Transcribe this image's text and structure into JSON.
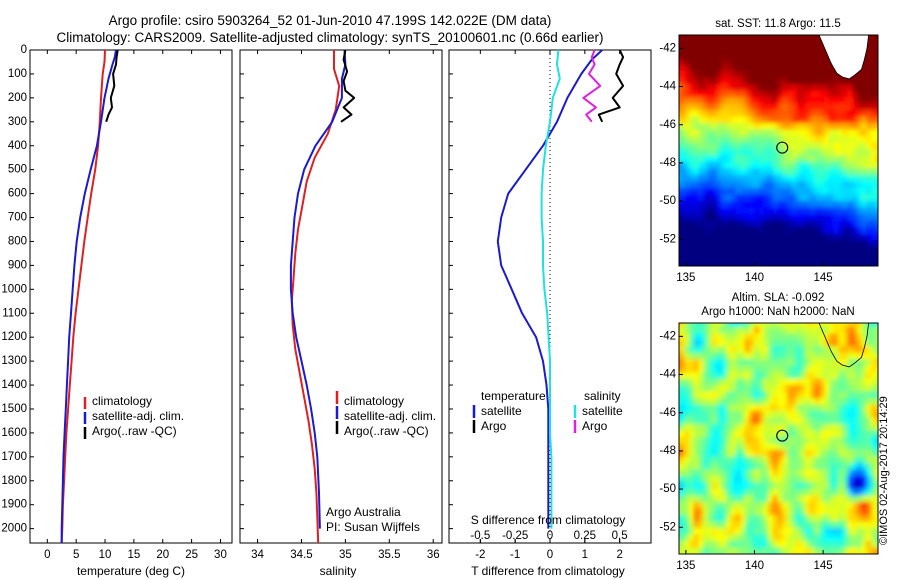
{
  "title_line1": "Argo profile: csiro 5903264_52 01-Jun-2010 47.199S 142.022E (DM data)",
  "title_line2": "Climatology: CARS2009. Satellite-adjusted climatology: synTS_20100601.nc (0.66d earlier)",
  "watermark": "©IMOS 02-Aug-2017 20:14:29",
  "colors": {
    "climatology": "#e02020",
    "satellite": "#1a1ad0",
    "argo": "#000000",
    "satellite_salinity": "#20e0e0",
    "argo_salinity": "#e020e0"
  },
  "chart_data": [
    {
      "type": "line",
      "id": "temperature",
      "xlabel": "temperature (deg C)",
      "ylabel": "",
      "xlim": [
        -3,
        32
      ],
      "ylim": [
        2060,
        0
      ],
      "xticks": [
        0,
        5,
        10,
        15,
        20,
        25,
        30
      ],
      "xtick_labels": [
        "0",
        "5",
        "10",
        "15",
        "20",
        "25",
        "30"
      ],
      "yticks": [
        0,
        100,
        200,
        300,
        400,
        500,
        600,
        700,
        800,
        900,
        1000,
        1100,
        1200,
        1300,
        1400,
        1500,
        1600,
        1700,
        1800,
        1900,
        2000
      ],
      "ytick_labels": [
        "0",
        "100",
        "200",
        "300",
        "400",
        "500",
        "600",
        "700",
        "800",
        "900",
        "1000",
        "1100",
        "1200",
        "1300",
        "1400",
        "1500",
        "1600",
        "1700",
        "1800",
        "1900",
        "2000"
      ],
      "legend": [
        "climatology",
        "satellite-adj. clim.",
        "Argo(..raw -QC)"
      ],
      "series": [
        {
          "name": "climatology",
          "color_key": "climatology",
          "x": [
            10.0,
            9.9,
            9.6,
            9.3,
            9.1,
            8.8,
            8.3,
            7.6,
            7.0,
            6.4,
            5.9,
            5.4,
            4.9,
            4.5,
            4.2,
            3.9,
            3.6,
            3.3,
            3.1,
            2.9,
            2.7,
            2.6,
            2.5,
            2.5
          ],
          "y": [
            0,
            50,
            100,
            200,
            300,
            400,
            500,
            600,
            700,
            800,
            900,
            1000,
            1100,
            1200,
            1300,
            1400,
            1500,
            1600,
            1700,
            1800,
            1900,
            2000,
            2050,
            2060
          ]
        },
        {
          "name": "satellite-adj. clim.",
          "color_key": "satellite",
          "x": [
            11.9,
            11.7,
            11.3,
            10.6,
            9.9,
            9.3,
            8.6,
            7.5,
            6.5,
            5.7,
            5.1,
            4.7,
            4.4,
            4.1,
            3.8,
            3.6,
            3.4,
            3.2,
            3.0,
            2.8,
            2.7,
            2.6,
            2.5,
            2.5
          ],
          "y": [
            0,
            30,
            60,
            120,
            200,
            300,
            400,
            500,
            600,
            700,
            800,
            900,
            1000,
            1100,
            1200,
            1300,
            1400,
            1500,
            1600,
            1700,
            1800,
            1900,
            2000,
            2060
          ]
        },
        {
          "name": "Argo(..raw -QC)",
          "color_key": "argo",
          "x": [
            12.2,
            12.0,
            11.9,
            11.4,
            11.6,
            11.0,
            11.2,
            10.6,
            10.2
          ],
          "y": [
            0,
            30,
            60,
            100,
            150,
            200,
            240,
            270,
            300
          ]
        }
      ]
    },
    {
      "type": "line",
      "id": "salinity",
      "xlabel": "salinity",
      "ylabel": "",
      "xlim": [
        33.8,
        36.1
      ],
      "ylim": [
        2060,
        0
      ],
      "xticks": [
        34,
        34.5,
        35,
        35.5,
        36
      ],
      "xtick_labels": [
        "34",
        "34.5",
        "35",
        "35.5",
        "36"
      ],
      "legend": [
        "climatology",
        "satellite-adj. clim.",
        "Argo(..raw -QC)"
      ],
      "annotation_lines": [
        "Argo Australia",
        "PI: Susan Wijffels"
      ],
      "series": [
        {
          "name": "climatology",
          "color_key": "climatology",
          "x": [
            34.87,
            34.87,
            34.93,
            34.89,
            34.8,
            34.65,
            34.56,
            34.51,
            34.46,
            34.43,
            34.41,
            34.39,
            34.4,
            34.43,
            34.48,
            34.53,
            34.58,
            34.62,
            34.65,
            34.67,
            34.68,
            34.69
          ],
          "y": [
            0,
            80,
            150,
            250,
            350,
            450,
            550,
            650,
            750,
            850,
            950,
            1050,
            1150,
            1250,
            1350,
            1450,
            1550,
            1650,
            1750,
            1850,
            1950,
            2060
          ]
        },
        {
          "name": "satellite-adj. clim.",
          "color_key": "satellite",
          "x": [
            34.99,
            35.0,
            34.96,
            34.96,
            34.85,
            34.66,
            34.53,
            34.46,
            34.42,
            34.4,
            34.38,
            34.38,
            34.4,
            34.44,
            34.5,
            34.56,
            34.61,
            34.65,
            34.68,
            34.7,
            34.71
          ],
          "y": [
            0,
            60,
            120,
            200,
            300,
            400,
            500,
            600,
            700,
            800,
            900,
            1000,
            1100,
            1200,
            1300,
            1400,
            1500,
            1600,
            1700,
            1850,
            2000
          ]
        },
        {
          "name": "Argo(..raw -QC)",
          "color_key": "argo",
          "x": [
            35.0,
            34.98,
            35.02,
            34.98,
            35.0,
            35.1,
            34.98,
            35.07,
            34.95
          ],
          "y": [
            0,
            40,
            90,
            130,
            170,
            200,
            240,
            270,
            300
          ]
        }
      ]
    },
    {
      "type": "line",
      "id": "difference",
      "xlabel": "T difference from climatology",
      "xlabel_top": "S difference from climatology",
      "ylabel": "",
      "xlim": [
        -2.9,
        2.9
      ],
      "ylim": [
        2060,
        0
      ],
      "xticks": [
        -2,
        -1,
        0,
        1,
        2
      ],
      "xtick_labels": [
        "-2",
        "-1",
        "0",
        "1",
        "2"
      ],
      "sticks": [
        -0.5,
        -0.25,
        0,
        0.25,
        0.5
      ],
      "stick_labels": [
        "-0.5",
        "-0.25",
        "0",
        "0.25",
        "0.5"
      ],
      "s_scale": 4,
      "legend_temperature": {
        "heading": "temperature",
        "items": [
          "satellite",
          "Argo"
        ]
      },
      "legend_salinity": {
        "heading": "salinity",
        "items": [
          "satellite",
          "Argo"
        ]
      },
      "series": [
        {
          "name": "satellite",
          "group": "temperature",
          "color_key": "satellite",
          "units": "deg C",
          "x": [
            1.5,
            1.2,
            0.9,
            0.5,
            0.2,
            -0.2,
            -0.7,
            -1.2,
            -1.4,
            -1.5,
            -1.4,
            -1.1,
            -0.8,
            -0.4,
            -0.2,
            -0.1,
            -0.05,
            -0.05,
            -0.05,
            -0.05,
            -0.05,
            -0.05
          ],
          "y": [
            0,
            40,
            100,
            200,
            300,
            400,
            500,
            600,
            700,
            800,
            900,
            1000,
            1100,
            1200,
            1300,
            1400,
            1500,
            1600,
            1700,
            1800,
            1900,
            2000
          ]
        },
        {
          "name": "Argo",
          "group": "temperature",
          "color_key": "argo",
          "units": "deg C",
          "x": [
            2.0,
            2.1,
            2.0,
            1.9,
            2.1,
            1.8,
            2.0,
            1.4,
            1.5
          ],
          "y": [
            0,
            30,
            60,
            100,
            150,
            200,
            240,
            270,
            300
          ]
        },
        {
          "name": "satellite",
          "group": "salinity",
          "color_key": "satellite_salinity",
          "units": "psu",
          "x": [
            0.06,
            0.05,
            0.07,
            0.02,
            0.0,
            -0.03,
            -0.05,
            -0.06,
            -0.06,
            -0.05,
            -0.05,
            -0.04,
            -0.02,
            -0.01,
            0.0,
            0.0,
            0.0,
            0.0,
            0.01,
            0.01,
            0.01,
            0.01
          ],
          "y": [
            0,
            60,
            120,
            200,
            300,
            400,
            500,
            600,
            700,
            800,
            900,
            1000,
            1100,
            1200,
            1300,
            1400,
            1500,
            1600,
            1700,
            1800,
            1900,
            2000
          ]
        },
        {
          "name": "Argo",
          "group": "salinity",
          "color_key": "argo_salinity",
          "units": "psu",
          "x": [
            0.32,
            0.3,
            0.32,
            0.28,
            0.36,
            0.24,
            0.33,
            0.26,
            0.3
          ],
          "y": [
            0,
            30,
            60,
            100,
            150,
            200,
            240,
            270,
            300
          ]
        }
      ]
    },
    {
      "type": "heatmap",
      "id": "sst_map",
      "title": "sat. SST: 11.8  Argo: 11.5",
      "xlim": [
        134.5,
        149
      ],
      "ylim": [
        -53.4,
        -41.3
      ],
      "xticks": [
        135,
        140,
        145
      ],
      "xtick_labels": [
        "135",
        "140",
        "145"
      ],
      "yticks": [
        -42,
        -44,
        -46,
        -48,
        -50,
        -52
      ],
      "ytick_labels": [
        "-42",
        "-44",
        "-46",
        "-48",
        "-50",
        "-52"
      ],
      "argo_position": {
        "lon": 142.022,
        "lat": -47.199
      },
      "colormap": "jet",
      "value_range": [
        6,
        16
      ],
      "note": "warm (red) in the north and northeast, cooling through green to blue/navy in the south"
    },
    {
      "type": "heatmap",
      "id": "sla_map",
      "title_line1": "Altim. SLA: -0.092",
      "title_line2": "Argo h1000: NaN h2000: NaN",
      "xlim": [
        134.5,
        149
      ],
      "ylim": [
        -53.4,
        -41.3
      ],
      "xticks": [
        135,
        140,
        145
      ],
      "xtick_labels": [
        "135",
        "140",
        "145"
      ],
      "yticks": [
        -42,
        -44,
        -46,
        -48,
        -50,
        -52
      ],
      "ytick_labels": [
        "-42",
        "-44",
        "-46",
        "-48",
        "-50",
        "-52"
      ],
      "argo_position": {
        "lon": 142.022,
        "lat": -47.199
      },
      "colormap": "jet",
      "value_range": [
        -0.5,
        0.5
      ]
    }
  ]
}
